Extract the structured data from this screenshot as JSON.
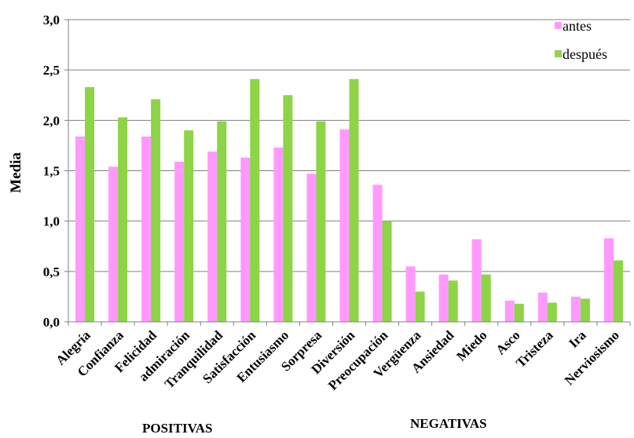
{
  "chart_data": {
    "type": "bar",
    "ylabel": "Media",
    "xlabel": "",
    "ylim": [
      0,
      3.0
    ],
    "yticks": [
      "0,0",
      "0,5",
      "1,0",
      "1,5",
      "2,0",
      "2,5",
      "3,0"
    ],
    "grid": true,
    "legend_position": "top-right",
    "categories": [
      "Alegría",
      "Confianza",
      "Felicidad",
      "admiración",
      "Tranquilidad",
      "Satisfacción",
      "Entusiasmo",
      "Sorpresa",
      "Diversión",
      "Preocupación",
      "Vergüenza",
      "Ansiedad",
      "Miedo",
      "Asco",
      "Tristeza",
      "Ira",
      "Nerviosismo"
    ],
    "series": [
      {
        "name": "antes",
        "color": "#ff99ff",
        "values": [
          1.84,
          1.54,
          1.84,
          1.59,
          1.69,
          1.63,
          1.73,
          1.47,
          1.91,
          1.36,
          0.55,
          0.47,
          0.82,
          0.21,
          0.29,
          0.25,
          0.83
        ]
      },
      {
        "name": "después",
        "color": "#8dd447",
        "values": [
          2.33,
          2.03,
          2.21,
          1.9,
          1.99,
          2.41,
          2.25,
          1.99,
          2.41,
          1.0,
          0.3,
          0.41,
          0.47,
          0.18,
          0.19,
          0.23,
          0.61
        ]
      }
    ],
    "groups": [
      {
        "label": "POSITIVAS"
      },
      {
        "label": "NEGATIVAS"
      }
    ]
  }
}
